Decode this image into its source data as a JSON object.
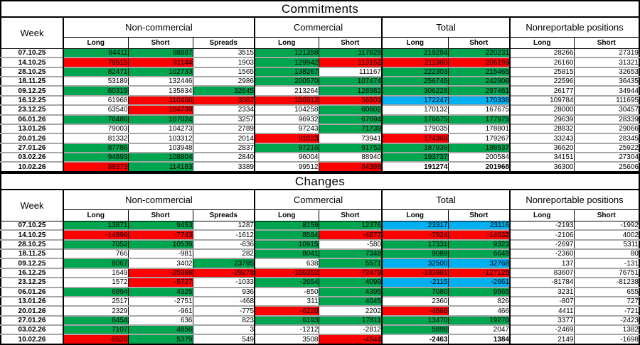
{
  "colors": {
    "green": "#00a550",
    "red": "#fe0000",
    "blue": "#00b0f0",
    "row_separator_gray": "#a6a6a6",
    "border_black": "#000000"
  },
  "chart_data": [
    {
      "type": "table",
      "title": "Commitments",
      "week_header": "Week",
      "groups": [
        "Non-commercial",
        "Commercial",
        "Total",
        "Nonreportable positions"
      ],
      "subheaders": [
        "Long",
        "Short",
        "Spreads",
        "Long",
        "Short",
        "Long",
        "Short",
        "Long",
        "Short"
      ],
      "rows": [
        {
          "week": "07.10.25",
          "cells": [
            [
              "94411",
              "g"
            ],
            [
              "98887",
              "g"
            ],
            [
              "3515",
              ""
            ],
            [
              "121358",
              "g"
            ],
            [
              "117829",
              "g"
            ],
            [
              "219284",
              "g"
            ],
            [
              "220231",
              "g"
            ],
            [
              "28266",
              ""
            ],
            [
              "27319",
              ""
            ]
          ]
        },
        {
          "week": "14.10.25",
          "cells": [
            [
              "79515",
              "r"
            ],
            [
              "91144",
              "r"
            ],
            [
              "1903",
              ""
            ],
            [
              "129942",
              "g"
            ],
            [
              "113152",
              "r"
            ],
            [
              "211360",
              "r"
            ],
            [
              "206199",
              "r"
            ],
            [
              "26160",
              ""
            ],
            [
              "31321",
              ""
            ]
          ]
        },
        {
          "week": "28.10.25",
          "cells": [
            [
              "82471",
              "g"
            ],
            [
              "102733",
              "g"
            ],
            [
              "1565",
              ""
            ],
            [
              "138267",
              "g"
            ],
            [
              "111167",
              ""
            ],
            [
              "222303",
              "g"
            ],
            [
              "215465",
              "g"
            ],
            [
              "25815",
              ""
            ],
            [
              "32653",
              ""
            ]
          ]
        },
        {
          "week": "18.11.25",
          "cells": [
            [
              "53189",
              ""
            ],
            [
              "132446",
              ""
            ],
            [
              "2986",
              ""
            ],
            [
              "200570",
              "g"
            ],
            [
              "107474",
              "g"
            ],
            [
              "256745",
              "g"
            ],
            [
              "242906",
              "g"
            ],
            [
              "22596",
              ""
            ],
            [
              "36435",
              ""
            ]
          ]
        },
        {
          "week": "09.12.25",
          "cells": [
            [
              "60319",
              "g"
            ],
            [
              "135834",
              ""
            ],
            [
              "32645",
              "g"
            ],
            [
              "213264",
              ""
            ],
            [
              "128982",
              "g"
            ],
            [
              "306228",
              "g"
            ],
            [
              "297461",
              "g"
            ],
            [
              "26177",
              ""
            ],
            [
              "34944",
              ""
            ]
          ]
        },
        {
          "week": "16.12.25",
          "cells": [
            [
              "61968",
              ""
            ],
            [
              "110466",
              "r"
            ],
            [
              "3367",
              "r"
            ],
            [
              "106912",
              "r"
            ],
            [
              "56503",
              "r"
            ],
            [
              "172247",
              "b"
            ],
            [
              "170336",
              "b"
            ],
            [
              "109784",
              ""
            ],
            [
              "111695",
              ""
            ]
          ]
        },
        {
          "week": "23.12.25",
          "cells": [
            [
              "63540",
              ""
            ],
            [
              "104739",
              "r"
            ],
            [
              "2334",
              ""
            ],
            [
              "104258",
              ""
            ],
            [
              "60602",
              "g"
            ],
            [
              "170132",
              ""
            ],
            [
              "167675",
              ""
            ],
            [
              "28000",
              ""
            ],
            [
              "30457",
              ""
            ]
          ]
        },
        {
          "week": "06.01.26",
          "cells": [
            [
              "76486",
              "g"
            ],
            [
              "107024",
              "g"
            ],
            [
              "3257",
              ""
            ],
            [
              "96932",
              ""
            ],
            [
              "67694",
              "g"
            ],
            [
              "176675",
              "g"
            ],
            [
              "177975",
              "g"
            ],
            [
              "29639",
              ""
            ],
            [
              "28339",
              ""
            ]
          ]
        },
        {
          "week": "13.01.26",
          "cells": [
            [
              "79003",
              ""
            ],
            [
              "104273",
              ""
            ],
            [
              "2789",
              ""
            ],
            [
              "97243",
              ""
            ],
            [
              "71739",
              "g"
            ],
            [
              "179035",
              ""
            ],
            [
              "178801",
              ""
            ],
            [
              "28832",
              ""
            ],
            [
              "29066",
              ""
            ]
          ]
        },
        {
          "week": "20.01.26",
          "cells": [
            [
              "81332",
              ""
            ],
            [
              "103312",
              ""
            ],
            [
              "2014",
              ""
            ],
            [
              "91023",
              "r"
            ],
            [
              "73941",
              ""
            ],
            [
              "174369",
              "r"
            ],
            [
              "179267",
              ""
            ],
            [
              "33243",
              ""
            ],
            [
              "28345",
              ""
            ]
          ]
        },
        {
          "week": "27.01.26",
          "cells": [
            [
              "87786",
              "g"
            ],
            [
              "103948",
              ""
            ],
            [
              "2837",
              ""
            ],
            [
              "97216",
              "g"
            ],
            [
              "91752",
              "g"
            ],
            [
              "187839",
              "g"
            ],
            [
              "198537",
              "g"
            ],
            [
              "36620",
              ""
            ],
            [
              "25922",
              ""
            ]
          ]
        },
        {
          "week": "03.02.26",
          "cells": [
            [
              "94893",
              "g"
            ],
            [
              "108804",
              "g"
            ],
            [
              "2840",
              ""
            ],
            [
              "96004",
              ""
            ],
            [
              "88940",
              ""
            ],
            [
              "193737",
              "g"
            ],
            [
              "200584",
              ""
            ],
            [
              "34151",
              ""
            ],
            [
              "27304",
              ""
            ]
          ]
        },
        {
          "week": "10.02.26",
          "cells": [
            [
              "88373",
              "r"
            ],
            [
              "114183",
              "g"
            ],
            [
              "3389",
              ""
            ],
            [
              "99512",
              ""
            ],
            [
              "84396",
              "r"
            ],
            [
              "191274",
              "",
              1
            ],
            [
              "201968",
              "",
              1
            ],
            [
              "36300",
              ""
            ],
            [
              "25606",
              ""
            ]
          ]
        }
      ]
    },
    {
      "type": "table",
      "title": "Changes",
      "week_header": "Week",
      "groups": [
        "Non-commercial",
        "Commercial",
        "Total",
        "Nonreportable positions"
      ],
      "subheaders": [
        "Long",
        "Short",
        "Spreads",
        "Long",
        "Short",
        "Long",
        "Short",
        "Long",
        "Short"
      ],
      "rows": [
        {
          "week": "07.10.25",
          "cells": [
            [
              "13871",
              "g"
            ],
            [
              "9453",
              "g"
            ],
            [
              "1287",
              ""
            ],
            [
              "8159",
              "g"
            ],
            [
              "12376",
              "g"
            ],
            [
              "23317",
              "b"
            ],
            [
              "23116",
              "b"
            ],
            [
              "-2193",
              ""
            ],
            [
              "-1992",
              ""
            ]
          ]
        },
        {
          "week": "14.10.25",
          "cells": [
            [
              "-14896",
              "r"
            ],
            [
              "-7743",
              "r"
            ],
            [
              "-1612",
              ""
            ],
            [
              "8584",
              "g"
            ],
            [
              "-4677",
              "r"
            ],
            [
              "-7924",
              "r"
            ],
            [
              "-14032",
              "r"
            ],
            [
              "-2106",
              ""
            ],
            [
              "4002",
              ""
            ]
          ]
        },
        {
          "week": "28.10.25",
          "cells": [
            [
              "7052",
              "g"
            ],
            [
              "10539",
              "g"
            ],
            [
              "-636",
              ""
            ],
            [
              "10915",
              "g"
            ],
            [
              "-580",
              ""
            ],
            [
              "17331",
              "g"
            ],
            [
              "9323",
              "g"
            ],
            [
              "-2697",
              ""
            ],
            [
              "5311",
              ""
            ]
          ]
        },
        {
          "week": "18.11.25",
          "cells": [
            [
              "766",
              ""
            ],
            [
              "-981",
              ""
            ],
            [
              "282",
              ""
            ],
            [
              "8041",
              "g"
            ],
            [
              "7348",
              "g"
            ],
            [
              "9089",
              "g"
            ],
            [
              "6649",
              "g"
            ],
            [
              "-2360",
              ""
            ],
            [
              "80",
              ""
            ]
          ]
        },
        {
          "week": "09.12.25",
          "cells": [
            [
              "8067",
              "g"
            ],
            [
              "3402",
              ""
            ],
            [
              "23795",
              "g"
            ],
            [
              "638",
              ""
            ],
            [
              "5571",
              "g"
            ],
            [
              "32500",
              "b"
            ],
            [
              "32768",
              "b"
            ],
            [
              "137",
              ""
            ],
            [
              "-131",
              ""
            ]
          ]
        },
        {
          "week": "16.12.25",
          "cells": [
            [
              "1649",
              ""
            ],
            [
              "-25368",
              "r"
            ],
            [
              "-29278",
              "r"
            ],
            [
              "-106352",
              "r"
            ],
            [
              "-72479",
              "r"
            ],
            [
              "-133981",
              "r"
            ],
            [
              "-127125",
              "r"
            ],
            [
              "83607",
              ""
            ],
            [
              "76751",
              ""
            ]
          ]
        },
        {
          "week": "23.12.25",
          "cells": [
            [
              "1572",
              ""
            ],
            [
              "-5727",
              "r"
            ],
            [
              "-1033",
              ""
            ],
            [
              "-2654",
              "g"
            ],
            [
              "4099",
              "g"
            ],
            [
              "-2115",
              "b"
            ],
            [
              "-2661",
              "b"
            ],
            [
              "-81784",
              ""
            ],
            [
              "-81238",
              ""
            ]
          ]
        },
        {
          "week": "06.01.26",
          "cells": [
            [
              "6994",
              "g"
            ],
            [
              "4325",
              "g"
            ],
            [
              "936",
              ""
            ],
            [
              "-850",
              ""
            ],
            [
              "4395",
              "g"
            ],
            [
              "7080",
              "g"
            ],
            [
              "9565",
              "g"
            ],
            [
              "3231",
              ""
            ],
            [
              "655",
              ""
            ]
          ]
        },
        {
          "week": "13.01.26",
          "cells": [
            [
              "2517",
              ""
            ],
            [
              "-2751",
              ""
            ],
            [
              "-468",
              ""
            ],
            [
              "311",
              ""
            ],
            [
              "4045",
              "g"
            ],
            [
              "2360",
              ""
            ],
            [
              "826",
              ""
            ],
            [
              "-807",
              ""
            ],
            [
              "727",
              ""
            ]
          ]
        },
        {
          "week": "20.01.26",
          "cells": [
            [
              "2329",
              ""
            ],
            [
              "-961",
              ""
            ],
            [
              "-775",
              ""
            ],
            [
              "-6220",
              "r"
            ],
            [
              "2202",
              ""
            ],
            [
              "-4666",
              "r"
            ],
            [
              "466",
              ""
            ],
            [
              "4411",
              ""
            ],
            [
              "-721",
              ""
            ]
          ]
        },
        {
          "week": "27.01.26",
          "cells": [
            [
              "6454",
              "g"
            ],
            [
              "636",
              ""
            ],
            [
              "823",
              ""
            ],
            [
              "6193",
              "g"
            ],
            [
              "17811",
              "g"
            ],
            [
              "13470",
              "g"
            ],
            [
              "19270",
              "g"
            ],
            [
              "3377",
              ""
            ],
            [
              "-2423",
              ""
            ]
          ]
        },
        {
          "week": "03.02.26",
          "cells": [
            [
              "7107",
              "g"
            ],
            [
              "4856",
              "g"
            ],
            [
              "3",
              ""
            ],
            [
              "-1212",
              ""
            ],
            [
              "-2812",
              ""
            ],
            [
              "5898",
              "g"
            ],
            [
              "2047",
              ""
            ],
            [
              "-2469",
              ""
            ],
            [
              "1382",
              ""
            ]
          ]
        },
        {
          "week": "10.02.26",
          "cells": [
            [
              "-6520",
              "r"
            ],
            [
              "5379",
              "g"
            ],
            [
              "549",
              ""
            ],
            [
              "3508",
              ""
            ],
            [
              "-4544",
              "r"
            ],
            [
              "-2463",
              "",
              1
            ],
            [
              "1384",
              "",
              1
            ],
            [
              "2149",
              ""
            ],
            [
              "-1698",
              ""
            ]
          ]
        }
      ]
    }
  ]
}
